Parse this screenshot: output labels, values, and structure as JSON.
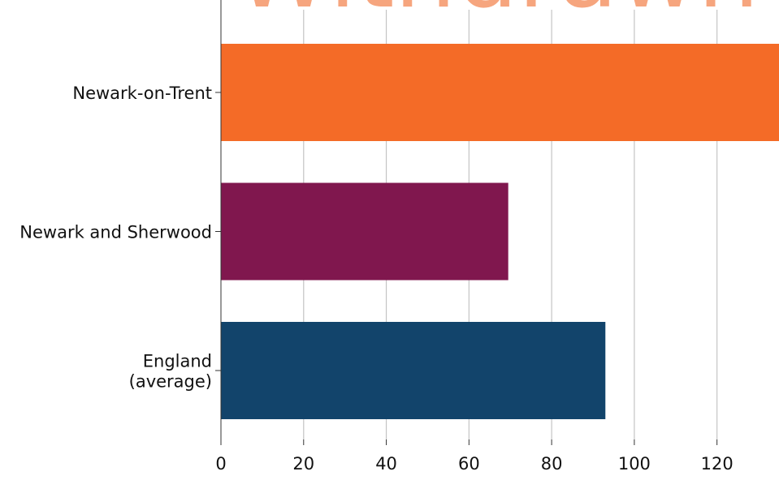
{
  "chart_data": {
    "type": "bar",
    "orientation": "horizontal",
    "categories": [
      "Newark-on-Trent",
      "Newark and Sherwood",
      "England (average)"
    ],
    "category_lines": [
      [
        "Newark-on-Trent"
      ],
      [
        "Newark and Sherwood"
      ],
      [
        "England",
        "(average)"
      ]
    ],
    "values": [
      136,
      69.5,
      93
    ],
    "colors": [
      "#f46b27",
      "#80174e",
      "#12446b"
    ],
    "xlim": [
      0,
      135
    ],
    "xticks": [
      0,
      20,
      40,
      60,
      80,
      100,
      120
    ],
    "grid": true,
    "title": "",
    "xlabel": "",
    "ylabel": "",
    "watermark": "Withdrawn"
  }
}
